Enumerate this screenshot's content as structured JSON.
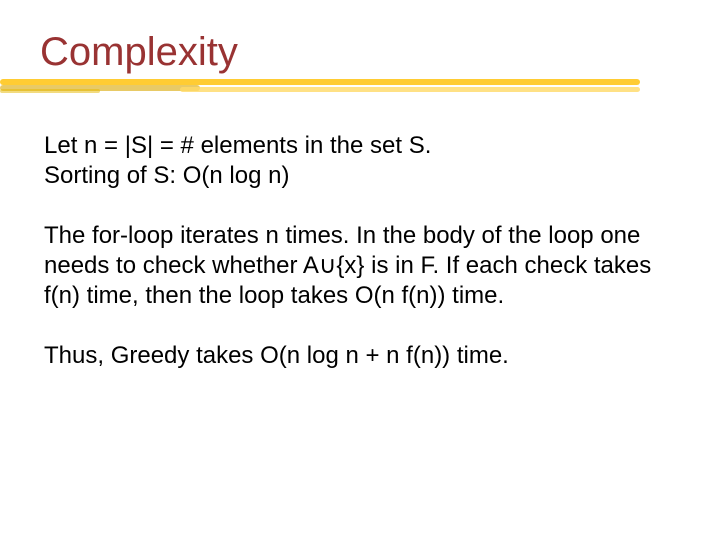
{
  "title": "Complexity",
  "colors": {
    "title_color": "#993333",
    "body_color": "#000000",
    "background": "#ffffff",
    "underline_main": "#ffcc33",
    "underline_shade1": "#d9a600",
    "underline_shade2": "#ffd966",
    "underline_shade3": "#e6b800"
  },
  "typography": {
    "font_family": "Comic Sans MS",
    "title_fontsize": 40,
    "body_fontsize": 24,
    "line_height": 1.25
  },
  "paragraphs": {
    "p1_line1": "Let n = |S| = # elements in the set S.",
    "p1_line2": "Sorting of S: O(n log n)",
    "p2": "The for-loop iterates n times. In the body of the loop one needs to check whether A∪{x} is in F. If each check takes f(n) time, then the loop takes O(n f(n)) time.",
    "p3": "Thus, Greedy takes O(n log n + n f(n)) time."
  }
}
